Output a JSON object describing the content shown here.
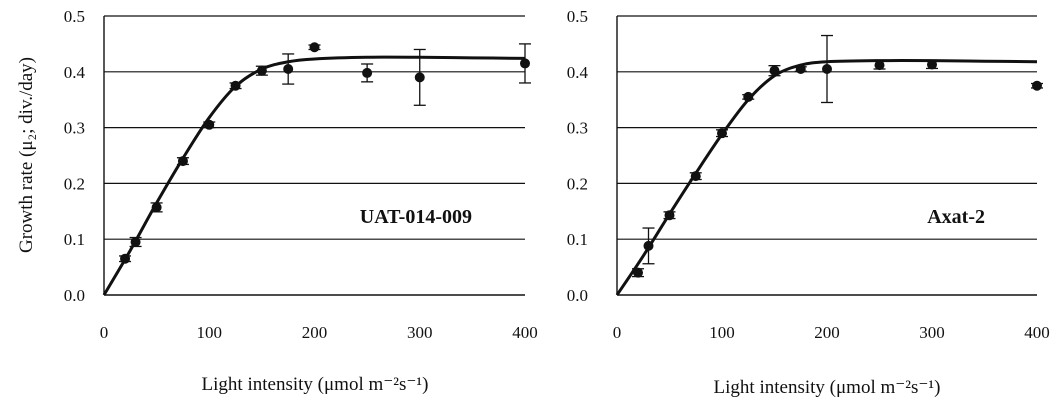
{
  "y_label": "Growth rate (μ₂; div./day)",
  "chart_data": [
    {
      "type": "scatter",
      "label": "UAT-014-009",
      "xlabel": "Light intensity (μmol m⁻²s⁻¹)",
      "ylabel": "Growth rate (μ₂; div./day)",
      "xlim": [
        0,
        400
      ],
      "ylim": [
        0,
        0.5
      ],
      "x_ticks": [
        "0",
        "100",
        "200",
        "300",
        "400"
      ],
      "y_ticks": [
        "0.0",
        "0.1",
        "0.2",
        "0.3",
        "0.4",
        "0.5"
      ],
      "grid": "horizontal",
      "points": [
        {
          "x": 20,
          "y": 0.065,
          "err": 0.005
        },
        {
          "x": 30,
          "y": 0.095,
          "err": 0.008
        },
        {
          "x": 50,
          "y": 0.157,
          "err": 0.008
        },
        {
          "x": 75,
          "y": 0.24,
          "err": 0.006
        },
        {
          "x": 100,
          "y": 0.305,
          "err": 0.005
        },
        {
          "x": 125,
          "y": 0.375,
          "err": 0.005
        },
        {
          "x": 150,
          "y": 0.402,
          "err": 0.008
        },
        {
          "x": 175,
          "y": 0.405,
          "err": 0.027
        },
        {
          "x": 200,
          "y": 0.444,
          "err": 0.004
        },
        {
          "x": 250,
          "y": 0.398,
          "err": 0.016
        },
        {
          "x": 300,
          "y": 0.39,
          "err": 0.05
        },
        {
          "x": 400,
          "y": 0.415,
          "err": 0.035
        }
      ],
      "fit_curve": {
        "x": [
          0,
          25,
          50,
          75,
          100,
          125,
          150,
          175,
          200,
          250,
          300,
          350,
          400
        ],
        "y": [
          0.0,
          0.08,
          0.165,
          0.245,
          0.318,
          0.374,
          0.405,
          0.418,
          0.423,
          0.426,
          0.426,
          0.425,
          0.424
        ]
      }
    },
    {
      "type": "scatter",
      "label": "Axat-2",
      "xlabel": "Light intensity (μmol m⁻²s⁻¹)",
      "ylabel": "",
      "xlim": [
        0,
        400
      ],
      "ylim": [
        0,
        0.5
      ],
      "x_ticks": [
        "0",
        "100",
        "200",
        "300",
        "400"
      ],
      "y_ticks": [
        "0.0",
        "0.1",
        "0.2",
        "0.3",
        "0.4",
        "0.5"
      ],
      "grid": "horizontal",
      "points": [
        {
          "x": 20,
          "y": 0.04,
          "err": 0.007
        },
        {
          "x": 30,
          "y": 0.088,
          "err": 0.032
        },
        {
          "x": 50,
          "y": 0.143,
          "err": 0.006
        },
        {
          "x": 75,
          "y": 0.213,
          "err": 0.006
        },
        {
          "x": 100,
          "y": 0.29,
          "err": 0.006
        },
        {
          "x": 125,
          "y": 0.355,
          "err": 0.004
        },
        {
          "x": 150,
          "y": 0.402,
          "err": 0.009
        },
        {
          "x": 175,
          "y": 0.405,
          "err": 0.004
        },
        {
          "x": 200,
          "y": 0.405,
          "err": 0.06
        },
        {
          "x": 250,
          "y": 0.412,
          "err": 0.007
        },
        {
          "x": 300,
          "y": 0.413,
          "err": 0.007
        },
        {
          "x": 400,
          "y": 0.375,
          "err": 0.004
        }
      ],
      "fit_curve": {
        "x": [
          0,
          25,
          50,
          75,
          100,
          125,
          150,
          175,
          200,
          250,
          300,
          350,
          400
        ],
        "y": [
          0.0,
          0.07,
          0.145,
          0.218,
          0.288,
          0.35,
          0.393,
          0.412,
          0.418,
          0.42,
          0.42,
          0.419,
          0.418
        ]
      }
    }
  ]
}
